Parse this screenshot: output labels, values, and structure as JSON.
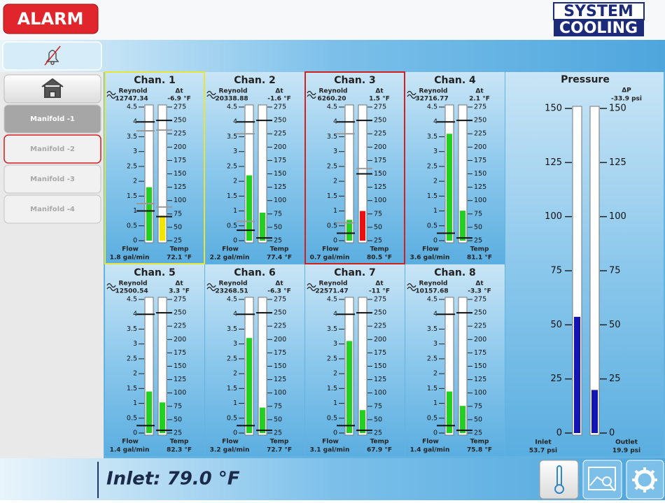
{
  "header": {
    "alarm": "ALARM",
    "logo": [
      "SYSTEM",
      "COOLING"
    ]
  },
  "sidebar": {
    "manifolds": [
      "Manifold -1",
      "Manifold -2",
      "Manifold -3",
      "Manifold -4"
    ]
  },
  "labels": {
    "reynold": "Reynold",
    "dt": "Δt",
    "flow": "Flow",
    "temp": "Temp"
  },
  "flow_scale": {
    "lim": [
      0,
      4.5
    ],
    "ticks": [
      0,
      0.5,
      1,
      1.5,
      2,
      2.5,
      3,
      3.5,
      4,
      4.5
    ]
  },
  "temp_scale": {
    "lim": [
      25,
      275
    ],
    "ticks": [
      25,
      50,
      75,
      100,
      125,
      150,
      175,
      200,
      225,
      250,
      275
    ]
  },
  "channels": [
    {
      "title": "Chan. 1",
      "border": "#e6e63a",
      "reynold": "12747.34",
      "dt": "-6.9 °F",
      "flow": {
        "value": 1.8,
        "label": "1.8 gal/min",
        "color": "#22d022"
      },
      "temp": {
        "value": 72.1,
        "label": "72.1 °F",
        "color": "#f2e600"
      },
      "flow_lines": [
        {
          "value": 4,
          "color": "#111111"
        },
        {
          "value": 3.7,
          "color": "#999999"
        },
        {
          "value": 1.25,
          "color": "#999999"
        },
        {
          "value": 1,
          "color": "#111111"
        }
      ],
      "temp_lines": [
        {
          "value": 250,
          "color": "#111111"
        },
        {
          "value": 232,
          "color": "#999999"
        },
        {
          "value": 88,
          "color": "#999999"
        },
        {
          "value": 70,
          "color": "#111111"
        }
      ]
    },
    {
      "title": "Chan. 2",
      "reynold": "20338.88",
      "dt": "-1.6 °F",
      "flow": {
        "value": 2.2,
        "label": "2.2 gal/min",
        "color": "#22d022"
      },
      "temp": {
        "value": 77.4,
        "label": "77.4 °F",
        "color": "#22d022"
      },
      "flow_lines": [
        {
          "value": 4,
          "color": "#111111"
        },
        {
          "value": 3.6,
          "color": "#999999"
        },
        {
          "value": 0.65,
          "color": "#999999"
        },
        {
          "value": 0.35,
          "color": "#111111"
        }
      ],
      "temp_lines": [
        {
          "value": 250,
          "color": "#111111"
        },
        {
          "value": 30,
          "color": "#111111"
        }
      ]
    },
    {
      "title": "Chan. 3",
      "border": "#d02020",
      "reynold": "6260.20",
      "dt": "1.5 °F",
      "flow": {
        "value": 0.7,
        "label": "0.7 gal/min",
        "color": "#22d022"
      },
      "temp": {
        "value": 80.5,
        "label": "80.5 °F",
        "color": "#e81010"
      },
      "flow_lines": [
        {
          "value": 4,
          "color": "#111111"
        },
        {
          "value": 3.6,
          "color": "#999999"
        },
        {
          "value": 0.6,
          "color": "#999999"
        },
        {
          "value": 0.25,
          "color": "#111111"
        }
      ],
      "temp_lines": [
        {
          "value": 250,
          "color": "#111111"
        },
        {
          "value": 160,
          "color": "#999999"
        },
        {
          "value": 150,
          "color": "#111111"
        }
      ]
    },
    {
      "title": "Chan. 4",
      "reynold": "32716.77",
      "dt": "2.1 °F",
      "flow": {
        "value": 3.6,
        "label": "3.6 gal/min",
        "color": "#22d022"
      },
      "temp": {
        "value": 81.1,
        "label": "81.1 °F",
        "color": "#22d022"
      },
      "flow_lines": [
        {
          "value": 4,
          "color": "#111111"
        },
        {
          "value": 0.25,
          "color": "#111111"
        }
      ],
      "temp_lines": [
        {
          "value": 250,
          "color": "#111111"
        },
        {
          "value": 30,
          "color": "#111111"
        }
      ]
    },
    {
      "title": "Chan. 5",
      "reynold": "12500.54",
      "dt": "3.3 °F",
      "flow": {
        "value": 1.4,
        "label": "1.4 gal/min",
        "color": "#22d022"
      },
      "temp": {
        "value": 82.3,
        "label": "82.3 °F",
        "color": "#22d022"
      },
      "flow_lines": [
        {
          "value": 4,
          "color": "#111111"
        },
        {
          "value": 0.25,
          "color": "#111111"
        }
      ],
      "temp_lines": [
        {
          "value": 250,
          "color": "#111111"
        },
        {
          "value": 30,
          "color": "#111111"
        }
      ]
    },
    {
      "title": "Chan. 6",
      "reynold": "23268.51",
      "dt": "-6.3 °F",
      "flow": {
        "value": 3.2,
        "label": "3.2 gal/min",
        "color": "#22d022"
      },
      "temp": {
        "value": 72.7,
        "label": "72.7 °F",
        "color": "#22d022"
      },
      "flow_lines": [
        {
          "value": 4,
          "color": "#111111"
        },
        {
          "value": 0.25,
          "color": "#111111"
        }
      ],
      "temp_lines": [
        {
          "value": 250,
          "color": "#111111"
        },
        {
          "value": 30,
          "color": "#111111"
        }
      ]
    },
    {
      "title": "Chan. 7",
      "reynold": "22571.47",
      "dt": "-11 °F",
      "flow": {
        "value": 3.1,
        "label": "3.1 gal/min",
        "color": "#22d022"
      },
      "temp": {
        "value": 67.9,
        "label": "67.9 °F",
        "color": "#22d022"
      },
      "flow_lines": [
        {
          "value": 4,
          "color": "#111111"
        },
        {
          "value": 0.25,
          "color": "#111111"
        }
      ],
      "temp_lines": [
        {
          "value": 250,
          "color": "#111111"
        },
        {
          "value": 30,
          "color": "#111111"
        }
      ]
    },
    {
      "title": "Chan. 8",
      "reynold": "10157.68",
      "dt": "-3.3 °F",
      "flow": {
        "value": 1.4,
        "label": "1.4 gal/min",
        "color": "#22d022"
      },
      "temp": {
        "value": 75.8,
        "label": "75.8 °F",
        "color": "#22d022"
      },
      "flow_lines": [
        {
          "value": 4,
          "color": "#111111"
        },
        {
          "value": 0.25,
          "color": "#111111"
        }
      ],
      "temp_lines": [
        {
          "value": 250,
          "color": "#111111"
        },
        {
          "value": 30,
          "color": "#111111"
        }
      ]
    }
  ],
  "pressure": {
    "title": "Pressure",
    "dp_label": "ΔP",
    "dp": "-33.9 psi",
    "lim": [
      0,
      150
    ],
    "ticks": [
      0,
      25,
      50,
      75,
      100,
      125,
      150
    ],
    "color": "#1414b4",
    "inlet": {
      "name": "Inlet",
      "value": 53.7,
      "label": "53.7 psi"
    },
    "outlet": {
      "name": "Outlet",
      "value": 19.9,
      "label": "19.9 psi"
    }
  },
  "footer": {
    "inlet": "Inlet: 79.0 °F"
  }
}
